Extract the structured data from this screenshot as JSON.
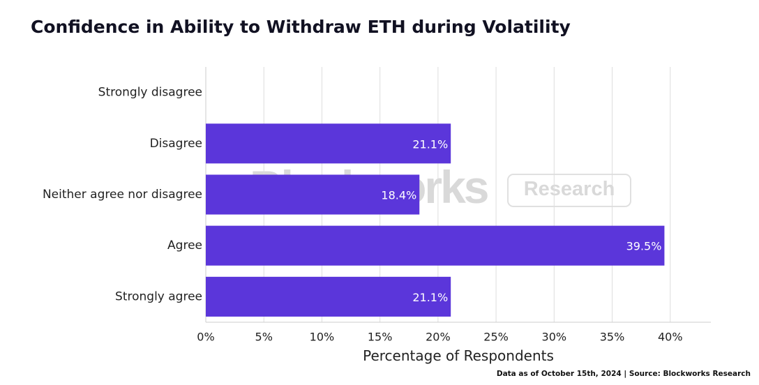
{
  "footer": "Data as of October 15th, 2024 | Source: Blockworks Research",
  "watermark": {
    "logo": "Blockworks",
    "badge": "Research"
  },
  "colors": {
    "bar": "#5b36da",
    "grid": "#dddddd",
    "text": "#222222",
    "title": "#111122"
  },
  "chart_data": {
    "type": "bar",
    "orientation": "horizontal",
    "title": "Confidence in Ability to Withdraw ETH during Volatility",
    "categories": [
      "Strongly disagree",
      "Disagree",
      "Neither agree nor disagree",
      "Agree",
      "Strongly agree"
    ],
    "values": [
      0,
      21.1,
      18.4,
      39.5,
      21.1
    ],
    "data_labels": [
      "",
      "21.1%",
      "18.4%",
      "39.5%",
      "21.1%"
    ],
    "xlabel": "Percentage of Respondents",
    "ylabel": "",
    "xlim": [
      0,
      43.5
    ],
    "xticks": [
      0,
      5,
      10,
      15,
      20,
      25,
      30,
      35,
      40
    ],
    "xtick_labels": [
      "0%",
      "5%",
      "10%",
      "15%",
      "20%",
      "25%",
      "30%",
      "35%",
      "40%"
    ],
    "grid": true,
    "legend": "none"
  }
}
